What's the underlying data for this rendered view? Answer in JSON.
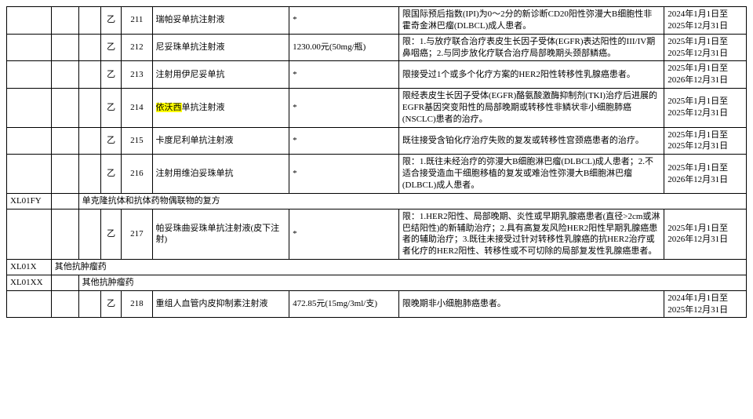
{
  "rows": [
    {
      "type": "drug",
      "class": "乙",
      "num": "211",
      "name": "瑞帕妥单抗注射液",
      "price": "*",
      "restrict": "限国际预后指数(IPI)为0～2分的新诊断CD20阳性弥漫大B细胞性非霍奇金淋巴瘤(DLBCL)成人患者。",
      "date": "2024年1月1日至2025年12月31日"
    },
    {
      "type": "drug",
      "class": "乙",
      "num": "212",
      "name": "尼妥珠单抗注射液",
      "price": "1230.00元(50mg/瓶)",
      "restrict": "限：1.与放疗联合治疗表皮生长因子受体(EGFR)表达阳性的III/IV期鼻咽癌；2.与同步放化疗联合治疗局部晚期头颈部鳞癌。",
      "date": "2025年1月1日至2025年12月31日"
    },
    {
      "type": "drug",
      "class": "乙",
      "num": "213",
      "name": "注射用伊尼妥单抗",
      "price": "*",
      "restrict": "限接受过1个或多个化疗方案的HER2阳性转移性乳腺癌患者。",
      "date": "2025年1月1日至2026年12月31日"
    },
    {
      "type": "drug",
      "class": "乙",
      "num": "214",
      "name_prefix": "依沃西",
      "name_suffix": "单抗注射液",
      "highlight": true,
      "price": "*",
      "restrict": "限经表皮生长因子受体(EGFR)酪氨酸激酶抑制剂(TKI)治疗后进展的EGFR基因突变阳性的局部晚期或转移性非鳞状非小细胞肺癌(NSCLC)患者的治疗。",
      "date": "2025年1月1日至2025年12月31日"
    },
    {
      "type": "drug",
      "class": "乙",
      "num": "215",
      "name": "卡度尼利单抗注射液",
      "price": "*",
      "restrict": "既往接受含铂化疗治疗失败的复发或转移性宫颈癌患者的治疗。",
      "date": "2025年1月1日至2025年12月31日"
    },
    {
      "type": "drug",
      "class": "乙",
      "num": "216",
      "name": "注射用维泊妥珠单抗",
      "price": "*",
      "restrict": "限：1.既往未经治疗的弥漫大B细胞淋巴瘤(DLBCL)成人患者；2.不适合接受造血干细胞移植的复发或难治性弥漫大B细胞淋巴瘤(DLBCL)成人患者。",
      "date": "2025年1月1日至2026年12月31日"
    },
    {
      "type": "section",
      "code1": "XL01FY",
      "label": "单克隆抗体和抗体药物偶联物的复方"
    },
    {
      "type": "drug",
      "class": "乙",
      "num": "217",
      "name": "帕妥珠曲妥珠单抗注射液(皮下注射)",
      "price": "*",
      "restrict": "限：1.HER2阳性、局部晚期、炎性或早期乳腺癌患者(直径>2cm或淋巴结阳性)的新辅助治疗；2.具有高复发风险HER2阳性早期乳腺癌患者的辅助治疗；3.既往未接受过针对转移性乳腺癌的抗HER2治疗或者化疗的HER2阳性、转移性或不可切除的局部复发性乳腺癌患者。",
      "date": "2025年1月1日至2026年12月31日"
    },
    {
      "type": "section",
      "code1": "XL01X",
      "label_at": 2,
      "label": "其他抗肿瘤药"
    },
    {
      "type": "section",
      "code1": "XL01XX",
      "label_at": 3,
      "label": "其他抗肿瘤药"
    },
    {
      "type": "drug",
      "class": "乙",
      "num": "218",
      "name": "重组人血管内皮抑制素注射液",
      "price": "472.85元(15mg/3ml/支)",
      "restrict": "限晚期非小细胞肺癌患者。",
      "date": "2024年1月1日至2025年12月31日"
    }
  ]
}
